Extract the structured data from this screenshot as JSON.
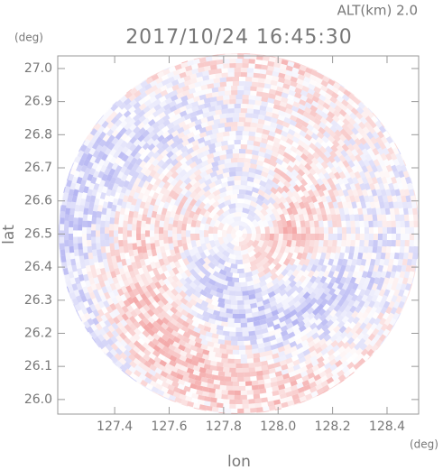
{
  "chart_data": {
    "type": "map",
    "title": "2017/10/24 16:45:30",
    "subtitle": "ALT(km) 2.0",
    "x_label": "lon",
    "y_label": "lat",
    "x_unit": "(deg)",
    "y_unit": "(deg)",
    "xlim": [
      127.191,
      128.516
    ],
    "ylim": [
      25.956,
      27.038
    ],
    "xticks": [
      127.4,
      127.6,
      127.8,
      {
        "value": 128,
        "label": "128.0"
      },
      128.2,
      128.4
    ],
    "yticks": [
      {
        "value": 26,
        "label": "26.0"
      },
      26.1,
      26.2,
      26.3,
      26.4,
      26.5,
      26.6,
      26.7,
      26.8,
      26.9,
      {
        "value": 27,
        "label": "27.0"
      }
    ]
  }
}
